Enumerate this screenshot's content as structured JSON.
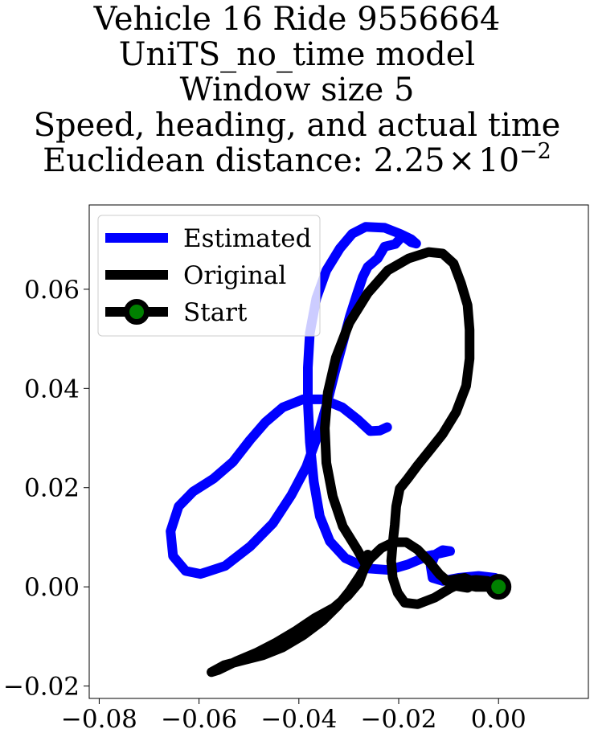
{
  "chart_data": {
    "type": "line",
    "title_lines": [
      "Vehicle 16 Ride 9556664",
      "UniTS_no_time model",
      "Window size 5",
      "Speed, heading, and actual time"
    ],
    "title_metric_label": "Euclidean distance: ",
    "title_metric_mantissa": "2.25",
    "title_metric_times": "×",
    "title_metric_base": "10",
    "title_metric_exp": "−2",
    "xlabel": "",
    "ylabel": "",
    "xlim": [
      -0.082,
      0.018
    ],
    "ylim": [
      -0.0225,
      0.077
    ],
    "xticks": [
      -0.08,
      -0.06,
      -0.04,
      -0.02,
      0.0
    ],
    "xtick_labels": [
      "−0.08",
      "−0.06",
      "−0.04",
      "−0.02",
      "0.00"
    ],
    "yticks": [
      -0.02,
      0.0,
      0.02,
      0.04,
      0.06
    ],
    "ytick_labels": [
      "−0.02",
      "0.00",
      "0.02",
      "0.04",
      "0.06"
    ],
    "grid": false,
    "legend_position": "top-left",
    "series": [
      {
        "name": "Estimated",
        "color": "#0000ff",
        "points": [
          [
            -0.0007,
            0.0018
          ],
          [
            -0.004,
            0.0022
          ],
          [
            -0.008,
            0.0018
          ],
          [
            -0.0112,
            0.0012
          ],
          [
            -0.0132,
            0.0018
          ],
          [
            -0.0136,
            0.0042
          ],
          [
            -0.0127,
            0.0065
          ],
          [
            -0.0112,
            0.0074
          ],
          [
            -0.0097,
            0.0072
          ],
          [
            -0.0142,
            0.0062
          ],
          [
            -0.0182,
            0.0045
          ],
          [
            -0.022,
            0.0034
          ],
          [
            -0.0262,
            0.0037
          ],
          [
            -0.0307,
            0.0058
          ],
          [
            -0.0338,
            0.0092
          ],
          [
            -0.0358,
            0.0142
          ],
          [
            -0.037,
            0.0212
          ],
          [
            -0.0378,
            0.0292
          ],
          [
            -0.0382,
            0.0372
          ],
          [
            -0.0382,
            0.0442
          ],
          [
            -0.0378,
            0.0512
          ],
          [
            -0.0365,
            0.0582
          ],
          [
            -0.0345,
            0.0638
          ],
          [
            -0.0318,
            0.0682
          ],
          [
            -0.0293,
            0.0712
          ],
          [
            -0.0266,
            0.0726
          ],
          [
            -0.0228,
            0.0724
          ],
          [
            -0.0198,
            0.0712
          ],
          [
            -0.0175,
            0.0701
          ],
          [
            -0.0165,
            0.0692
          ],
          [
            -0.0175,
            0.0695
          ],
          [
            -0.0192,
            0.0708
          ],
          [
            -0.0207,
            0.0691
          ],
          [
            -0.0228,
            0.0686
          ],
          [
            -0.0242,
            0.0662
          ],
          [
            -0.0262,
            0.0645
          ],
          [
            -0.0272,
            0.0625
          ],
          [
            -0.0283,
            0.0592
          ],
          [
            -0.0298,
            0.0545
          ],
          [
            -0.0312,
            0.0492
          ],
          [
            -0.0328,
            0.0432
          ],
          [
            -0.0343,
            0.0372
          ],
          [
            -0.036,
            0.0312
          ],
          [
            -0.0385,
            0.0242
          ],
          [
            -0.0415,
            0.0185
          ],
          [
            -0.0452,
            0.0128
          ],
          [
            -0.0497,
            0.0082
          ],
          [
            -0.0548,
            0.0042
          ],
          [
            -0.0597,
            0.0026
          ],
          [
            -0.0627,
            0.0032
          ],
          [
            -0.0652,
            0.0062
          ],
          [
            -0.0657,
            0.0112
          ],
          [
            -0.0641,
            0.0162
          ],
          [
            -0.0612,
            0.0192
          ],
          [
            -0.0571,
            0.0218
          ],
          [
            -0.0532,
            0.0252
          ],
          [
            -0.0498,
            0.0296
          ],
          [
            -0.0467,
            0.0332
          ],
          [
            -0.0432,
            0.0362
          ],
          [
            -0.0392,
            0.0378
          ],
          [
            -0.0352,
            0.0378
          ],
          [
            -0.0313,
            0.0362
          ],
          [
            -0.0283,
            0.0338
          ],
          [
            -0.0257,
            0.0314
          ],
          [
            -0.0238,
            0.0315
          ],
          [
            -0.0223,
            0.0322
          ]
        ]
      },
      {
        "name": "Original",
        "color": "#000000",
        "points": [
          [
            0.0,
            0.0
          ],
          [
            -0.0045,
            0.0
          ],
          [
            -0.0085,
            0.0008
          ],
          [
            -0.0105,
            0.0012
          ],
          [
            -0.0068,
            0.0018
          ],
          [
            -0.0045,
            0.0008
          ],
          [
            -0.0062,
            -0.0002
          ],
          [
            -0.0092,
            0.0003
          ],
          [
            -0.0118,
            0.0025
          ],
          [
            -0.014,
            0.0052
          ],
          [
            -0.0162,
            0.0075
          ],
          [
            -0.0185,
            0.009
          ],
          [
            -0.021,
            0.009
          ],
          [
            -0.0235,
            0.0078
          ],
          [
            -0.0258,
            0.0056
          ],
          [
            -0.0278,
            0.0022
          ],
          [
            -0.0298,
            -0.0008
          ],
          [
            -0.0322,
            -0.0038
          ],
          [
            -0.0352,
            -0.0068
          ],
          [
            -0.0392,
            -0.0098
          ],
          [
            -0.0432,
            -0.0122
          ],
          [
            -0.0472,
            -0.0138
          ],
          [
            -0.0512,
            -0.0148
          ],
          [
            -0.055,
            -0.0158
          ],
          [
            -0.0575,
            -0.0172
          ],
          [
            -0.0562,
            -0.0168
          ],
          [
            -0.0525,
            -0.015
          ],
          [
            -0.0485,
            -0.0133
          ],
          [
            -0.0445,
            -0.0112
          ],
          [
            -0.0405,
            -0.0088
          ],
          [
            -0.0368,
            -0.0063
          ],
          [
            -0.033,
            -0.0042
          ],
          [
            -0.0302,
            -0.0018
          ],
          [
            -0.028,
            0.0008
          ],
          [
            -0.0267,
            0.0042
          ],
          [
            -0.0262,
            0.0065
          ],
          [
            -0.0268,
            0.0048
          ],
          [
            -0.0283,
            0.0075
          ],
          [
            -0.0312,
            0.0122
          ],
          [
            -0.0332,
            0.0182
          ],
          [
            -0.0345,
            0.025
          ],
          [
            -0.0348,
            0.032
          ],
          [
            -0.0342,
            0.0392
          ],
          [
            -0.0326,
            0.0462
          ],
          [
            -0.0299,
            0.0532
          ],
          [
            -0.0262,
            0.0592
          ],
          [
            -0.0222,
            0.0638
          ],
          [
            -0.018,
            0.0662
          ],
          [
            -0.014,
            0.0675
          ],
          [
            -0.0112,
            0.0672
          ],
          [
            -0.009,
            0.0652
          ],
          [
            -0.0075,
            0.0612
          ],
          [
            -0.0062,
            0.0568
          ],
          [
            -0.0058,
            0.0518
          ],
          [
            -0.0058,
            0.046
          ],
          [
            -0.0065,
            0.0405
          ],
          [
            -0.0085,
            0.0352
          ],
          [
            -0.0112,
            0.0308
          ],
          [
            -0.0138,
            0.0275
          ],
          [
            -0.0162,
            0.0245
          ],
          [
            -0.0182,
            0.0218
          ],
          [
            -0.0198,
            0.0198
          ],
          [
            -0.0205,
            0.0162
          ],
          [
            -0.0208,
            0.0125
          ],
          [
            -0.0212,
            0.0088
          ],
          [
            -0.0215,
            0.0052
          ],
          [
            -0.0212,
            0.0018
          ],
          [
            -0.0202,
            -0.0012
          ],
          [
            -0.0188,
            -0.0032
          ],
          [
            -0.0162,
            -0.0035
          ],
          [
            -0.0128,
            -0.0022
          ],
          [
            -0.0095,
            -0.0002
          ],
          [
            -0.0065,
            0.0012
          ],
          [
            -0.0045,
            0.0014
          ],
          [
            -0.0022,
            0.0012
          ],
          [
            0.0,
            0.0
          ]
        ]
      }
    ],
    "start": {
      "name": "Start",
      "x": 0.0,
      "y": 0.0,
      "marker_edge_color": "#000000",
      "marker_face_color": "#008000"
    }
  }
}
